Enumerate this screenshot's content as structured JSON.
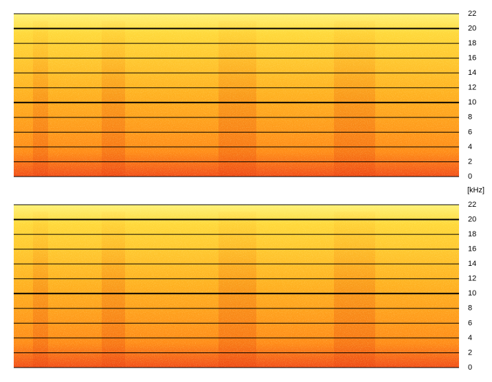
{
  "chart_data": [
    {
      "type": "spectrogram",
      "ylim": [
        0,
        22
      ],
      "yticks": [
        0,
        2,
        4,
        6,
        8,
        10,
        12,
        14,
        16,
        18,
        20,
        22
      ],
      "grid": true,
      "major_grid": [
        10,
        20
      ]
    },
    {
      "type": "spectrogram",
      "ylim": [
        0,
        22
      ],
      "yticks": [
        0,
        2,
        4,
        6,
        8,
        10,
        12,
        14,
        16,
        18,
        20,
        22
      ],
      "grid": true,
      "major_grid": [
        10,
        20
      ]
    }
  ],
  "y_axis_label": "[kHz]"
}
